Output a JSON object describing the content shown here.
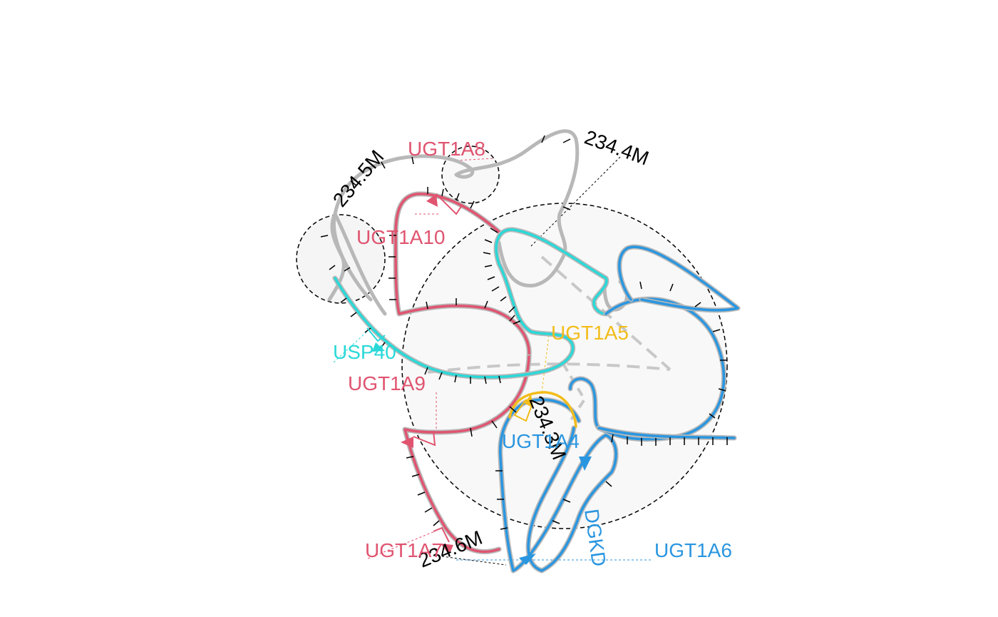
{
  "diagram": {
    "type": "chromatin-3d-gene-track-plot",
    "coordinates": [
      {
        "id": "c1",
        "label": "234.5M"
      },
      {
        "id": "c2",
        "label": "234.4M"
      },
      {
        "id": "c3",
        "label": "234.3M"
      },
      {
        "id": "c4",
        "label": "234.6M"
      }
    ],
    "genes": [
      {
        "id": "g1",
        "label": "UGT1A8",
        "color": "#e05470"
      },
      {
        "id": "g2",
        "label": "UGT1A10",
        "color": "#e05470"
      },
      {
        "id": "g3",
        "label": "USP40",
        "color": "#2ad8d8"
      },
      {
        "id": "g4",
        "label": "UGT1A9",
        "color": "#e05470"
      },
      {
        "id": "g5",
        "label": "UGT1A5",
        "color": "#f2bc1a"
      },
      {
        "id": "g6",
        "label": "UGT1A4",
        "color": "#2a96e0"
      },
      {
        "id": "g7",
        "label": "UGT1A6",
        "color": "#2a96e0"
      },
      {
        "id": "g8",
        "label": "UGT1A7",
        "color": "#e05470"
      },
      {
        "id": "g9",
        "label": "DGKD",
        "color": "#2a96e0"
      }
    ],
    "colors": {
      "backbone": "#bdbdbd",
      "highlight_red": "#e05470",
      "highlight_cyan": "#2ad8d8",
      "highlight_yellow": "#f2bc1a",
      "highlight_blue": "#2a96e0",
      "region_fill": "#f5f5f5"
    }
  }
}
